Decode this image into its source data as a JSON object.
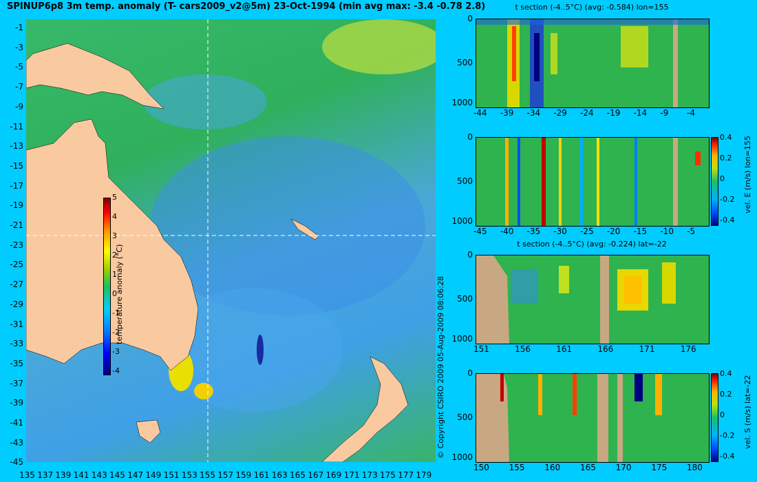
{
  "title": "SPINUP6p8 3m temp. anomaly (T- cars2009_v2@5m) 23-Oct-1994 (min avg max: -3.4 -0.78 2.8)",
  "copyright": "© Copyright CSIRO 2009   05-Aug-2009 08:06:28",
  "map": {
    "lat_labels": [
      "-1",
      "-3",
      "-5",
      "-7",
      "-9",
      "-11",
      "-13",
      "-15",
      "-17",
      "-19",
      "-21",
      "-23",
      "-25",
      "-27",
      "-29",
      "-31",
      "-33",
      "-35",
      "-37",
      "-39",
      "-41",
      "-43",
      "-45"
    ],
    "lon_labels": [
      "135",
      "137",
      "139",
      "141",
      "143",
      "145",
      "147",
      "149",
      "151",
      "153",
      "155",
      "157",
      "159",
      "161",
      "163",
      "165",
      "167",
      "169",
      "171",
      "173",
      "175",
      "177",
      "179"
    ],
    "colorbar": {
      "label": "temperature anomaly (°C)",
      "ticks": [
        "5",
        "4",
        "3",
        "2",
        "1",
        "0",
        "-1",
        "-2",
        "-3",
        "-4"
      ]
    },
    "colors": {
      "land": "#f9c9a0",
      "ocean_base": "#38b46a",
      "cool": "#3d8fe6",
      "crosshair": "#ffffff"
    }
  },
  "panels": [
    {
      "title": "t section (-4..5°C) (avg: -0.584) lon=155",
      "yticks": [
        "0",
        "500",
        "1000"
      ],
      "xticks": [
        "-44",
        "-39",
        "-34",
        "-29",
        "-24",
        "-19",
        "-14",
        "-9",
        "-4"
      ],
      "side_label": "",
      "cbar_ticks": []
    },
    {
      "title": "",
      "yticks": [
        "0",
        "500",
        "1000"
      ],
      "xticks": [
        "-45",
        "-40",
        "-35",
        "-30",
        "-25",
        "-20",
        "-15",
        "-10",
        "-5"
      ],
      "side_label": "vel. E (m/s) lon=155",
      "cbar_ticks": [
        "0.4",
        "0.2",
        "0",
        "-0.2",
        "-0.4"
      ]
    },
    {
      "title": "t section (-4..5°C) (avg: -0.224) lat=-22",
      "yticks": [
        "0",
        "500",
        "1000"
      ],
      "xticks": [
        "151",
        "156",
        "161",
        "166",
        "171",
        "176"
      ],
      "side_label": "",
      "cbar_ticks": []
    },
    {
      "title": "",
      "yticks": [
        "0",
        "500",
        "1000"
      ],
      "xticks": [
        "150",
        "155",
        "160",
        "165",
        "170",
        "175",
        "180"
      ],
      "side_label": "vel. S (m/s) lat=-22",
      "cbar_ticks": [
        "0.4",
        "0.2",
        "0",
        "-0.2",
        "-0.4"
      ]
    }
  ]
}
